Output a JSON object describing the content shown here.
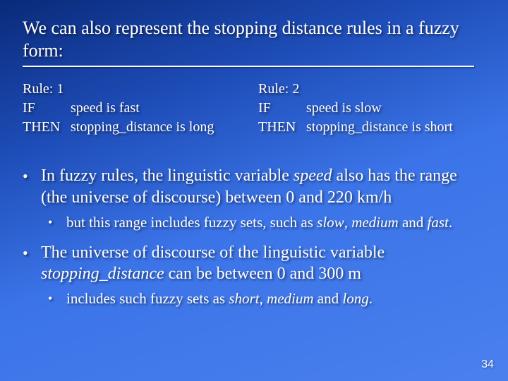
{
  "colors": {
    "background_gradient": [
      "#0a2a7a",
      "#1e4db8",
      "#3b74e8",
      "#4a80ee"
    ],
    "text": "#ffffff",
    "underline": "#ffffff",
    "shadow": "rgba(0,0,0,0.55)"
  },
  "typography": {
    "family": "Times New Roman",
    "title_size_pt": 20,
    "body_size_pt": 18,
    "rules_size_pt": 15,
    "sub_size_pt": 16
  },
  "title": "We can also represent the stopping distance rules in a fuzzy form:",
  "rules": [
    {
      "header": "Rule: 1",
      "if_kw": "IF",
      "if_txt": "speed is fast",
      "then_kw": "THEN",
      "then_txt": "stopping_distance is long"
    },
    {
      "header": "Rule: 2",
      "if_kw": "IF",
      "if_txt": "speed is slow",
      "then_kw": "THEN",
      "then_txt": "stopping_distance is short"
    }
  ],
  "bullets": [
    {
      "pre": "In fuzzy rules, the linguistic variable ",
      "em1": "speed",
      "post": " also has the range (the universe of discourse) between 0 and 220 km/h",
      "sub": {
        "pre": "but this range includes fuzzy sets, such as ",
        "em1": "slow",
        "mid1": ", ",
        "em2": "medium",
        "mid2": " and ",
        "em3": "fast",
        "post": "."
      }
    },
    {
      "pre": "The universe of discourse of the linguistic variable ",
      "em1": "stopping_distance",
      "post": " can be between 0 and 300 m",
      "sub": {
        "pre": "includes such fuzzy sets as ",
        "em1": "short",
        "mid1": ", ",
        "em2": "medium",
        "mid2": " and ",
        "em3": "long",
        "post": "."
      }
    }
  ],
  "page_number": "34"
}
